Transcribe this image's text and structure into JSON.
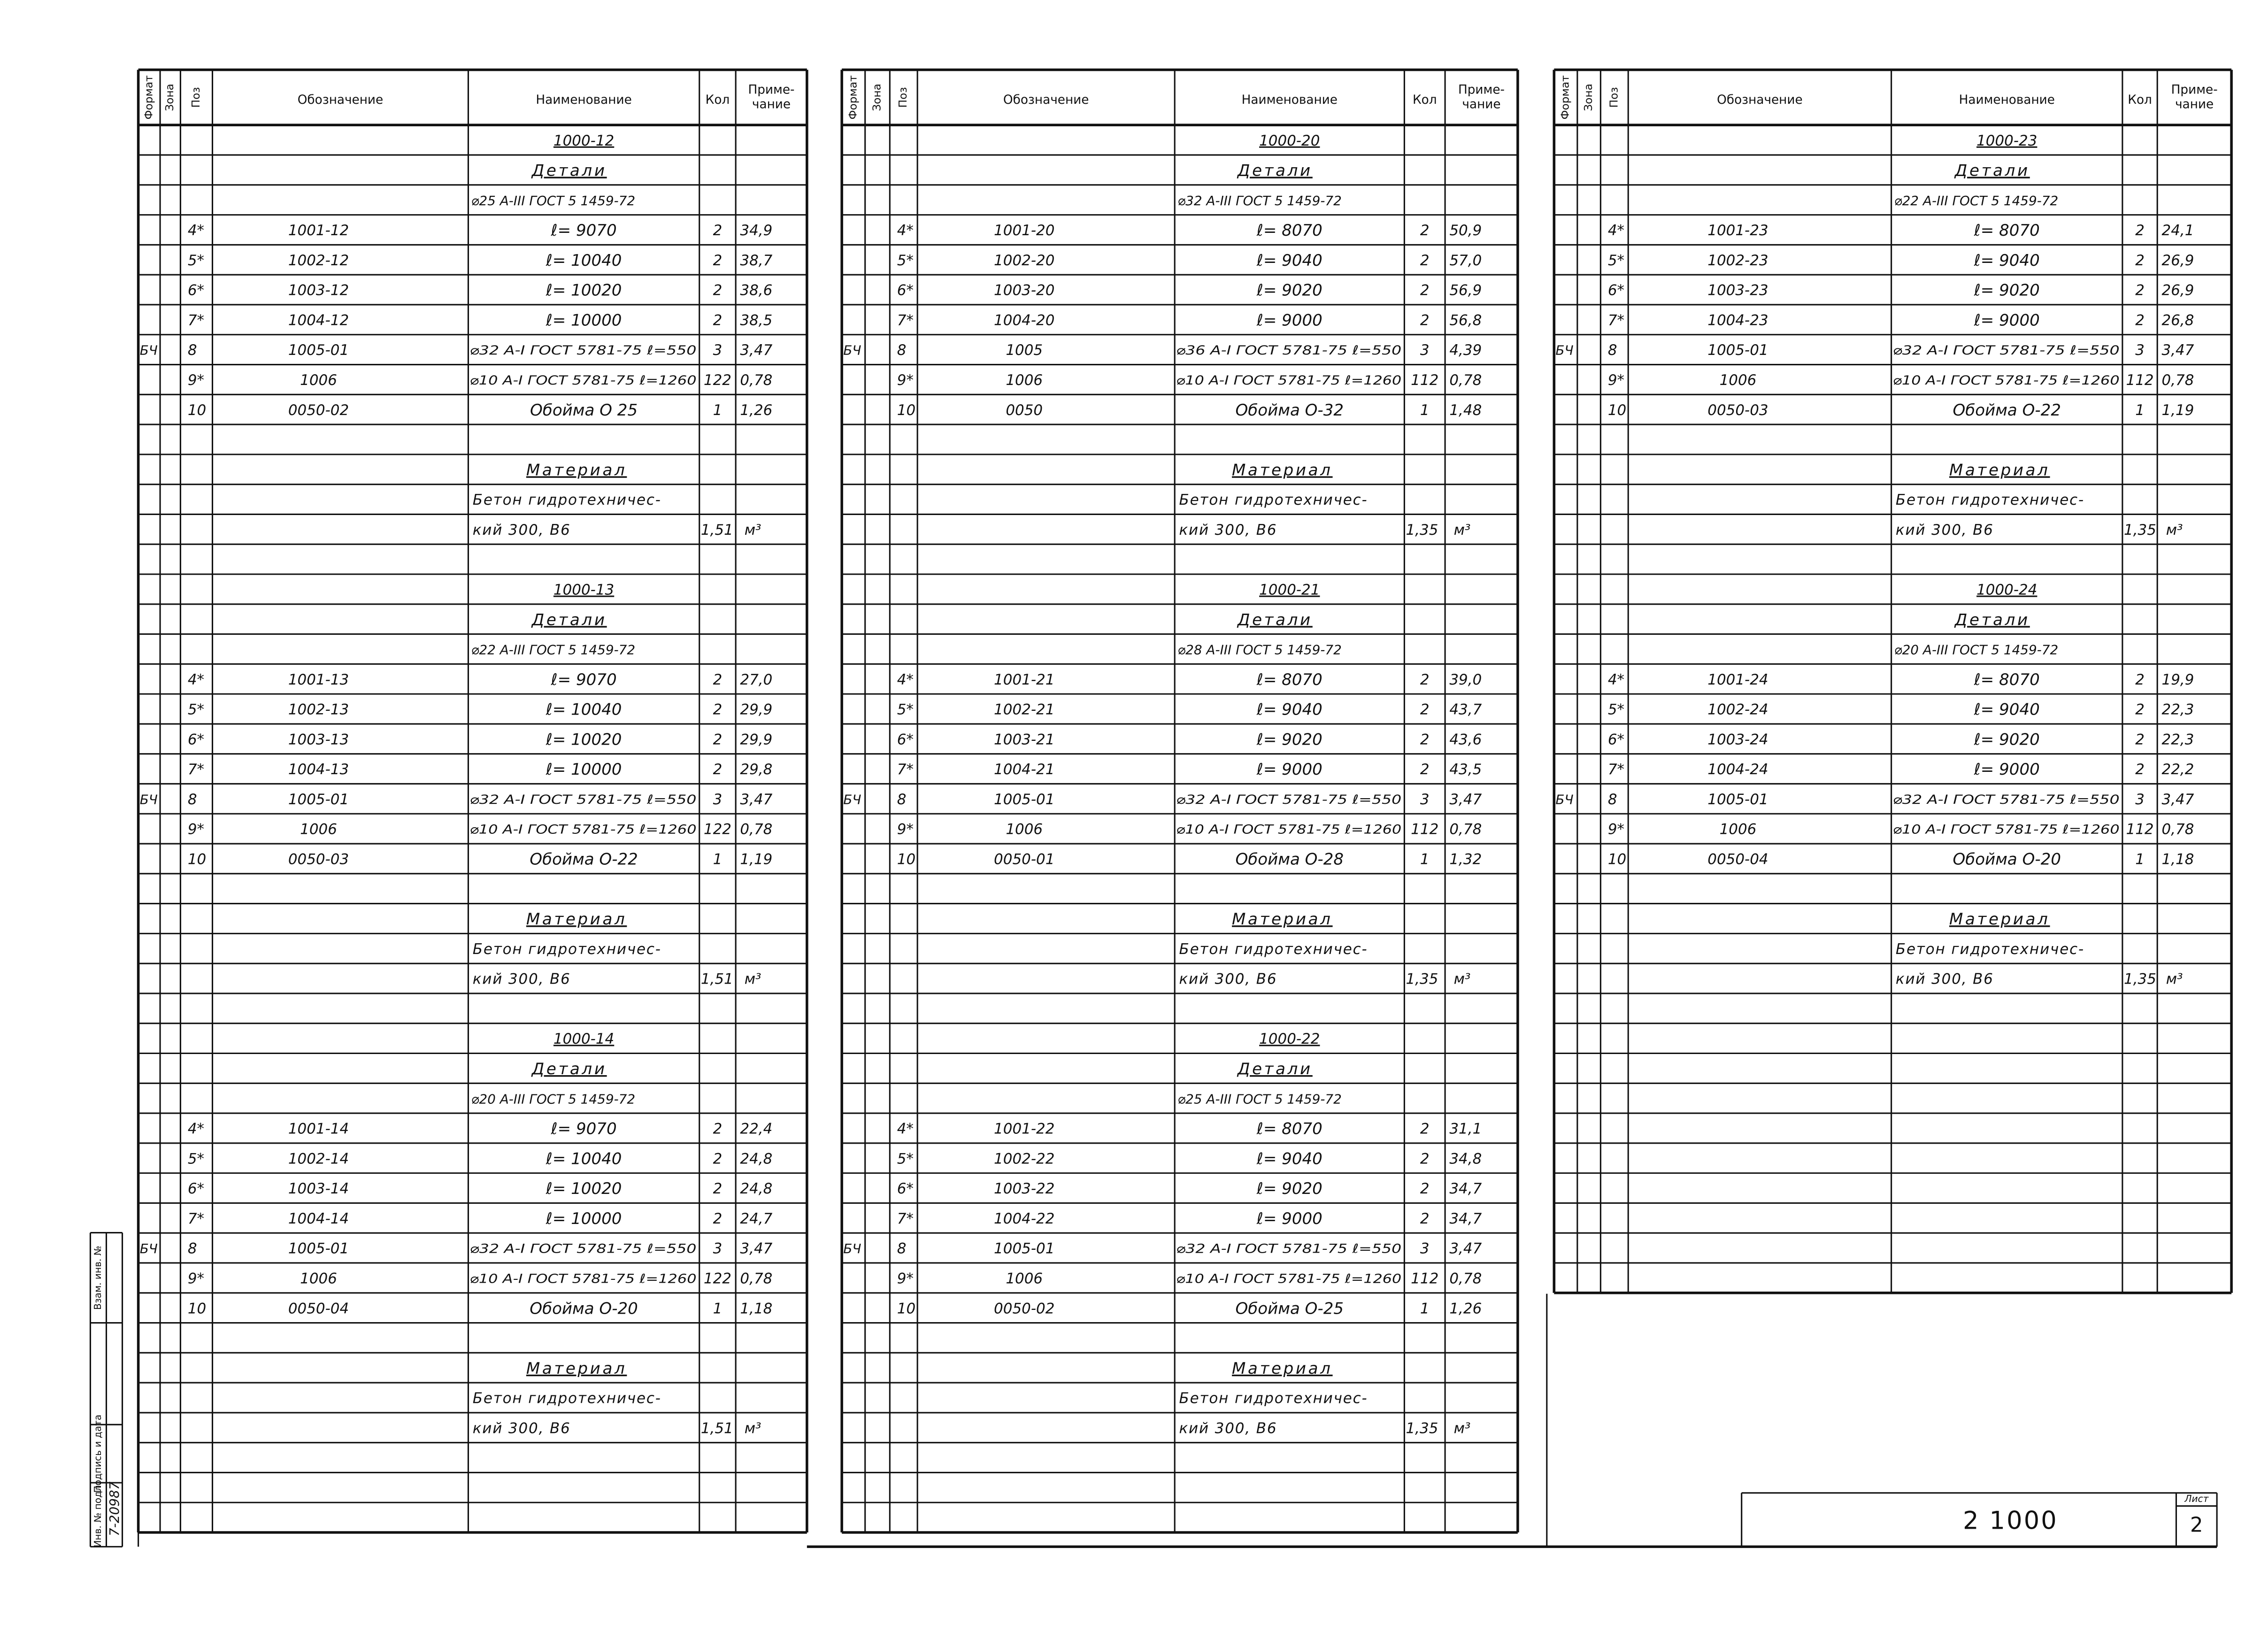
{
  "header": {
    "columns": [
      "Формат",
      "Зона",
      "Поз",
      "Обозначение",
      "Наименование",
      "Кол"
    ],
    "note": [
      "Приме-",
      "чание"
    ]
  },
  "panels": [
    {
      "blocks": [
        {
          "mark": "1000-12",
          "section": "Детали",
          "steel": "⌀25 А-III ГОСТ 5 1459-72",
          "items": [
            {
              "pos": "4*",
              "designation": "1001-12",
              "name": "ℓ= 9070",
              "qty": "2",
              "note": "34,9"
            },
            {
              "pos": "5*",
              "designation": "1002-12",
              "name": "ℓ= 10040",
              "qty": "2",
              "note": "38,7"
            },
            {
              "pos": "6*",
              "designation": "1003-12",
              "name": "ℓ= 10020",
              "qty": "2",
              "note": "38,6"
            },
            {
              "pos": "7*",
              "designation": "1004-12",
              "name": "ℓ= 10000",
              "qty": "2",
              "note": "38,5"
            },
            {
              "format": "БЧ",
              "pos": "8",
              "designation": "1005-01",
              "name": "⌀32 А-I ГОСТ 5781-75 ℓ=550",
              "qty": "3",
              "note": "3,47"
            },
            {
              "pos": "9*",
              "designation": "1006",
              "name": "⌀10 А-I ГОСТ 5781-75 ℓ=1260",
              "qty": "122",
              "note": "0,78"
            },
            {
              "pos": "10",
              "designation": "0050-02",
              "name": "Обойма О 25",
              "qty": "1",
              "note": "1,26"
            }
          ],
          "material": "Материал",
          "concrete": [
            "Бетон гидротехничес-",
            "кий 300, В6"
          ],
          "concrete_qty": "1,51",
          "concrete_unit": "м³"
        },
        {
          "mark": "1000-13",
          "section": "Детали",
          "steel": "⌀22 А-III ГОСТ 5 1459-72",
          "items": [
            {
              "pos": "4*",
              "designation": "1001-13",
              "name": "ℓ= 9070",
              "qty": "2",
              "note": "27,0"
            },
            {
              "pos": "5*",
              "designation": "1002-13",
              "name": "ℓ= 10040",
              "qty": "2",
              "note": "29,9"
            },
            {
              "pos": "6*",
              "designation": "1003-13",
              "name": "ℓ= 10020",
              "qty": "2",
              "note": "29,9"
            },
            {
              "pos": "7*",
              "designation": "1004-13",
              "name": "ℓ= 10000",
              "qty": "2",
              "note": "29,8"
            },
            {
              "format": "БЧ",
              "pos": "8",
              "designation": "1005-01",
              "name": "⌀32 А-I ГОСТ 5781-75 ℓ=550",
              "qty": "3",
              "note": "3,47"
            },
            {
              "pos": "9*",
              "designation": "1006",
              "name": "⌀10 А-I ГОСТ 5781-75 ℓ=1260",
              "qty": "122",
              "note": "0,78"
            },
            {
              "pos": "10",
              "designation": "0050-03",
              "name": "Обойма О-22",
              "qty": "1",
              "note": "1,19"
            }
          ],
          "material": "Материал",
          "concrete": [
            "Бетон гидротехничес-",
            "кий 300, В6"
          ],
          "concrete_qty": "1,51",
          "concrete_unit": "м³"
        },
        {
          "mark": "1000-14",
          "section": "Детали",
          "steel": "⌀20 А-III ГОСТ 5 1459-72",
          "items": [
            {
              "pos": "4*",
              "designation": "1001-14",
              "name": "ℓ= 9070",
              "qty": "2",
              "note": "22,4"
            },
            {
              "pos": "5*",
              "designation": "1002-14",
              "name": "ℓ= 10040",
              "qty": "2",
              "note": "24,8"
            },
            {
              "pos": "6*",
              "designation": "1003-14",
              "name": "ℓ= 10020",
              "qty": "2",
              "note": "24,8"
            },
            {
              "pos": "7*",
              "designation": "1004-14",
              "name": "ℓ= 10000",
              "qty": "2",
              "note": "24,7"
            },
            {
              "format": "БЧ",
              "pos": "8",
              "designation": "1005-01",
              "name": "⌀32 А-I ГОСТ 5781-75 ℓ=550",
              "qty": "3",
              "note": "3,47"
            },
            {
              "pos": "9*",
              "designation": "1006",
              "name": "⌀10 А-I ГОСТ 5781-75 ℓ=1260",
              "qty": "122",
              "note": "0,78"
            },
            {
              "pos": "10",
              "designation": "0050-04",
              "name": "Обойма О-20",
              "qty": "1",
              "note": "1,18"
            }
          ],
          "material": "Материал",
          "concrete": [
            "Бетон гидротехничес-",
            "кий 300, В6"
          ],
          "concrete_qty": "1,51",
          "concrete_unit": "м³"
        }
      ]
    },
    {
      "blocks": [
        {
          "mark": "1000-20",
          "section": "Детали",
          "steel": "⌀32 А-III ГОСТ 5 1459-72",
          "items": [
            {
              "pos": "4*",
              "designation": "1001-20",
              "name": "ℓ= 8070",
              "qty": "2",
              "note": "50,9"
            },
            {
              "pos": "5*",
              "designation": "1002-20",
              "name": "ℓ= 9040",
              "qty": "2",
              "note": "57,0"
            },
            {
              "pos": "6*",
              "designation": "1003-20",
              "name": "ℓ= 9020",
              "qty": "2",
              "note": "56,9"
            },
            {
              "pos": "7*",
              "designation": "1004-20",
              "name": "ℓ= 9000",
              "qty": "2",
              "note": "56,8"
            },
            {
              "format": "БЧ",
              "pos": "8",
              "designation": "1005",
              "name": "⌀36 А-I ГОСТ 5781-75 ℓ=550",
              "qty": "3",
              "note": "4,39"
            },
            {
              "pos": "9*",
              "designation": "1006",
              "name": "⌀10 А-I ГОСТ 5781-75 ℓ=1260",
              "qty": "112",
              "note": "0,78"
            },
            {
              "pos": "10",
              "designation": "0050",
              "name": "Обойма О-32",
              "qty": "1",
              "note": "1,48"
            }
          ],
          "material": "Материал",
          "concrete": [
            "Бетон гидротехничес-",
            "кий 300, В6"
          ],
          "concrete_qty": "1,35",
          "concrete_unit": "м³"
        },
        {
          "mark": "1000-21",
          "section": "Детали",
          "steel": "⌀28 А-III ГОСТ 5 1459-72",
          "items": [
            {
              "pos": "4*",
              "designation": "1001-21",
              "name": "ℓ= 8070",
              "qty": "2",
              "note": "39,0"
            },
            {
              "pos": "5*",
              "designation": "1002-21",
              "name": "ℓ= 9040",
              "qty": "2",
              "note": "43,7"
            },
            {
              "pos": "6*",
              "designation": "1003-21",
              "name": "ℓ= 9020",
              "qty": "2",
              "note": "43,6"
            },
            {
              "pos": "7*",
              "designation": "1004-21",
              "name": "ℓ= 9000",
              "qty": "2",
              "note": "43,5"
            },
            {
              "format": "БЧ",
              "pos": "8",
              "designation": "1005-01",
              "name": "⌀32 А-I ГОСТ 5781-75 ℓ=550",
              "qty": "3",
              "note": "3,47"
            },
            {
              "pos": "9*",
              "designation": "1006",
              "name": "⌀10 А-I ГОСТ 5781-75 ℓ=1260",
              "qty": "112",
              "note": "0,78"
            },
            {
              "pos": "10",
              "designation": "0050-01",
              "name": "Обойма О-28",
              "qty": "1",
              "note": "1,32"
            }
          ],
          "material": "Материал",
          "concrete": [
            "Бетон гидротехничес-",
            "кий 300, В6"
          ],
          "concrete_qty": "1,35",
          "concrete_unit": "м³"
        },
        {
          "mark": "1000-22",
          "section": "Детали",
          "steel": "⌀25 А-III ГОСТ 5 1459-72",
          "items": [
            {
              "pos": "4*",
              "designation": "1001-22",
              "name": "ℓ= 8070",
              "qty": "2",
              "note": "31,1"
            },
            {
              "pos": "5*",
              "designation": "1002-22",
              "name": "ℓ= 9040",
              "qty": "2",
              "note": "34,8"
            },
            {
              "pos": "6*",
              "designation": "1003-22",
              "name": "ℓ= 9020",
              "qty": "2",
              "note": "34,7"
            },
            {
              "pos": "7*",
              "designation": "1004-22",
              "name": "ℓ= 9000",
              "qty": "2",
              "note": "34,7"
            },
            {
              "format": "БЧ",
              "pos": "8",
              "designation": "1005-01",
              "name": "⌀32 А-I ГОСТ 5781-75 ℓ=550",
              "qty": "3",
              "note": "3,47"
            },
            {
              "pos": "9*",
              "designation": "1006",
              "name": "⌀10 А-I ГОСТ 5781-75 ℓ=1260",
              "qty": "112",
              "note": "0,78"
            },
            {
              "pos": "10",
              "designation": "0050-02",
              "name": "Обойма О-25",
              "qty": "1",
              "note": "1,26"
            }
          ],
          "material": "Материал",
          "concrete": [
            "Бетон гидротехничес-",
            "кий 300, В6"
          ],
          "concrete_qty": "1,35",
          "concrete_unit": "м³"
        }
      ]
    },
    {
      "blocks": [
        {
          "mark": "1000-23",
          "section": "Детали",
          "steel": "⌀22 А-III ГОСТ 5 1459-72",
          "items": [
            {
              "pos": "4*",
              "designation": "1001-23",
              "name": "ℓ= 8070",
              "qty": "2",
              "note": "24,1"
            },
            {
              "pos": "5*",
              "designation": "1002-23",
              "name": "ℓ= 9040",
              "qty": "2",
              "note": "26,9"
            },
            {
              "pos": "6*",
              "designation": "1003-23",
              "name": "ℓ= 9020",
              "qty": "2",
              "note": "26,9"
            },
            {
              "pos": "7*",
              "designation": "1004-23",
              "name": "ℓ= 9000",
              "qty": "2",
              "note": "26,8"
            },
            {
              "format": "БЧ",
              "pos": "8",
              "designation": "1005-01",
              "name": "⌀32 А-I ГОСТ 5781-75 ℓ=550",
              "qty": "3",
              "note": "3,47"
            },
            {
              "pos": "9*",
              "designation": "1006",
              "name": "⌀10 А-I ГОСТ 5781-75 ℓ=1260",
              "qty": "112",
              "note": "0,78"
            },
            {
              "pos": "10",
              "designation": "0050-03",
              "name": "Обойма О-22",
              "qty": "1",
              "note": "1,19"
            }
          ],
          "material": "Материал",
          "concrete": [
            "Бетон гидротехничес-",
            "кий 300, В6"
          ],
          "concrete_qty": "1,35",
          "concrete_unit": "м³"
        },
        {
          "mark": "1000-24",
          "section": "Детали",
          "steel": "⌀20 А-III ГОСТ 5 1459-72",
          "items": [
            {
              "pos": "4*",
              "designation": "1001-24",
              "name": "ℓ= 8070",
              "qty": "2",
              "note": "19,9"
            },
            {
              "pos": "5*",
              "designation": "1002-24",
              "name": "ℓ= 9040",
              "qty": "2",
              "note": "22,3"
            },
            {
              "pos": "6*",
              "designation": "1003-24",
              "name": "ℓ= 9020",
              "qty": "2",
              "note": "22,3"
            },
            {
              "pos": "7*",
              "designation": "1004-24",
              "name": "ℓ= 9000",
              "qty": "2",
              "note": "22,2"
            },
            {
              "format": "БЧ",
              "pos": "8",
              "designation": "1005-01",
              "name": "⌀32 А-I ГОСТ 5781-75 ℓ=550",
              "qty": "3",
              "note": "3,47"
            },
            {
              "pos": "9*",
              "designation": "1006",
              "name": "⌀10 А-I ГОСТ 5781-75 ℓ=1260",
              "qty": "112",
              "note": "0,78"
            },
            {
              "pos": "10",
              "designation": "0050-04",
              "name": "Обойма О-20",
              "qty": "1",
              "note": "1,18"
            }
          ],
          "material": "Материал",
          "concrete": [
            "Бетон гидротехничес-",
            "кий 300, В6"
          ],
          "concrete_qty": "1,35",
          "concrete_unit": "м³"
        }
      ]
    }
  ],
  "stamp": {
    "fields": [
      "Инв. № подл.",
      "Подпись и дата",
      "Взам. инв. №"
    ],
    "inventory": "7-20987"
  },
  "title_block": {
    "document": "2   1000",
    "sheet_label": "Лист",
    "sheet": "2"
  }
}
